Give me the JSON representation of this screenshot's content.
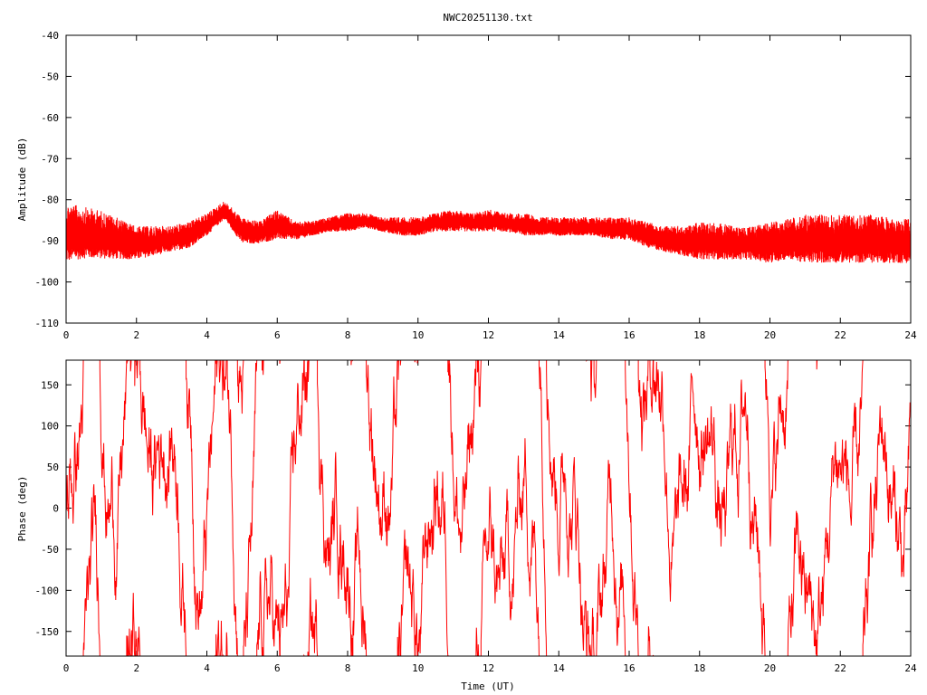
{
  "chart_data": [
    {
      "type": "line",
      "title": "NWC20251130.txt",
      "xlabel": "",
      "ylabel": "Amplitude (dB)",
      "xlim": [
        0,
        24
      ],
      "ylim": [
        -110,
        -40
      ],
      "x_ticks": [
        0,
        2,
        4,
        6,
        8,
        10,
        12,
        14,
        16,
        18,
        20,
        22,
        24
      ],
      "y_ticks": [
        -40,
        -50,
        -60,
        -70,
        -80,
        -90,
        -100,
        -110
      ],
      "x_tick_labels": [
        "0",
        "2",
        "4",
        "6",
        "8",
        "10",
        "12",
        "14",
        "16",
        "18",
        "20",
        "22",
        "24"
      ],
      "y_tick_labels": [
        "-40",
        "-50",
        "-60",
        "-70",
        "-80",
        "-90",
        "-100",
        "-110"
      ],
      "color": "#ff0000",
      "series": [
        {
          "x": [
            0,
            0.5,
            1,
            1.5,
            2,
            2.5,
            3,
            3.5,
            4,
            4.5,
            5,
            5.5,
            6,
            6.5,
            7,
            7.5,
            8,
            8.5,
            9,
            9.5,
            10,
            10.5,
            11,
            11.5,
            12,
            12.5,
            13,
            13.5,
            14,
            14.5,
            15,
            15.5,
            16,
            16.5,
            17,
            17.5,
            18,
            18.5,
            19,
            19.5,
            20,
            20.5,
            21,
            21.5,
            22,
            22.5,
            23,
            23.5,
            24
          ],
          "y_low": [
            -96,
            -95,
            -95,
            -95,
            -95,
            -94,
            -93,
            -92,
            -89,
            -85,
            -91,
            -91,
            -90,
            -90,
            -89,
            -88,
            -88,
            -87,
            -88,
            -89,
            -89,
            -88,
            -88,
            -88,
            -88,
            -88,
            -89,
            -89,
            -89,
            -89,
            -89,
            -90,
            -90,
            -92,
            -93,
            -94,
            -95,
            -95,
            -95,
            -95,
            -96,
            -95,
            -96,
            -96,
            -96,
            -96,
            -96,
            -96,
            -96
          ],
          "y_high": [
            -80,
            -81,
            -82,
            -84,
            -86,
            -86,
            -86,
            -85,
            -83,
            -80,
            -84,
            -85,
            -82,
            -85,
            -85,
            -84,
            -83,
            -83,
            -84,
            -84,
            -84,
            -83,
            -82,
            -83,
            -82,
            -83,
            -83,
            -84,
            -84,
            -84,
            -84,
            -84,
            -84,
            -85,
            -86,
            -86,
            -85,
            -85,
            -86,
            -86,
            -85,
            -84,
            -83,
            -83,
            -83,
            -83,
            -83,
            -84,
            -84
          ]
        }
      ]
    },
    {
      "type": "line",
      "title": "",
      "xlabel": "Time (UT)",
      "ylabel": "Phase (deg)",
      "xlim": [
        0,
        24
      ],
      "ylim": [
        -180,
        180
      ],
      "x_ticks": [
        0,
        2,
        4,
        6,
        8,
        10,
        12,
        14,
        16,
        18,
        20,
        22,
        24
      ],
      "y_ticks": [
        150,
        100,
        50,
        0,
        -50,
        -100,
        -150
      ],
      "x_tick_labels": [
        "0",
        "2",
        "4",
        "6",
        "8",
        "10",
        "12",
        "14",
        "16",
        "18",
        "20",
        "22",
        "24"
      ],
      "y_tick_labels": [
        "150",
        "100",
        "50",
        "0",
        "-50",
        "-100",
        "-150"
      ],
      "color": "#ff0000",
      "series": [
        {
          "x_range": [
            0,
            24
          ],
          "y_range": [
            -180,
            180
          ],
          "description": "wrapped phase, rapidly varying between -180 and 180"
        }
      ]
    }
  ]
}
